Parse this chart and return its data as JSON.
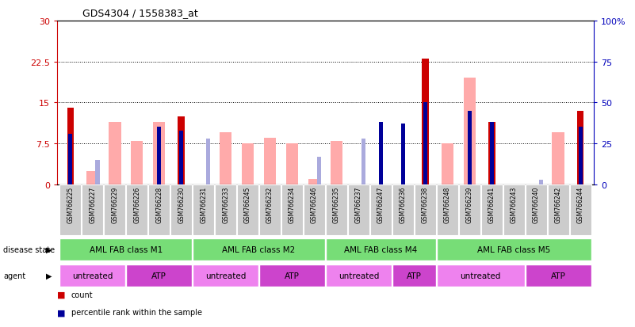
{
  "title": "GDS4304 / 1558383_at",
  "samples": [
    "GSM766225",
    "GSM766227",
    "GSM766229",
    "GSM766226",
    "GSM766228",
    "GSM766230",
    "GSM766231",
    "GSM766233",
    "GSM766245",
    "GSM766232",
    "GSM766234",
    "GSM766246",
    "GSM766235",
    "GSM766237",
    "GSM766247",
    "GSM766236",
    "GSM766238",
    "GSM766248",
    "GSM766239",
    "GSM766241",
    "GSM766243",
    "GSM766240",
    "GSM766242",
    "GSM766244"
  ],
  "count_values": [
    14.0,
    0,
    0,
    0,
    0,
    12.5,
    0,
    0,
    0,
    0,
    0,
    0,
    0,
    0,
    0,
    0,
    23.0,
    0,
    0,
    11.5,
    0,
    0,
    0,
    13.5
  ],
  "percentile_values": [
    31,
    0,
    0,
    0,
    35,
    33,
    0,
    0,
    0,
    0,
    0,
    0,
    0,
    0,
    38,
    37,
    50,
    0,
    45,
    38,
    0,
    0,
    0,
    35
  ],
  "absent_value_values": [
    0,
    2.5,
    11.5,
    8.0,
    11.5,
    0,
    0,
    9.5,
    7.5,
    8.5,
    7.5,
    1.0,
    8.0,
    0,
    0,
    0,
    0,
    7.5,
    19.5,
    0,
    0,
    0,
    9.5,
    0
  ],
  "absent_rank_values": [
    0,
    15,
    0,
    0,
    0,
    0,
    28,
    0,
    0,
    0,
    0,
    17,
    0,
    28,
    0,
    0,
    0,
    0,
    0,
    0,
    0,
    3,
    0,
    0
  ],
  "disease_state_groups": [
    {
      "label": "AML FAB class M1",
      "start": 0,
      "end": 5
    },
    {
      "label": "AML FAB class M2",
      "start": 6,
      "end": 11
    },
    {
      "label": "AML FAB class M4",
      "start": 12,
      "end": 16
    },
    {
      "label": "AML FAB class M5",
      "start": 17,
      "end": 23
    }
  ],
  "agent_groups": [
    {
      "label": "untreated",
      "start": 0,
      "end": 2,
      "color": "#ee82ee"
    },
    {
      "label": "ATP",
      "start": 3,
      "end": 5,
      "color": "#cc44cc"
    },
    {
      "label": "untreated",
      "start": 6,
      "end": 8,
      "color": "#ee82ee"
    },
    {
      "label": "ATP",
      "start": 9,
      "end": 11,
      "color": "#cc44cc"
    },
    {
      "label": "untreated",
      "start": 12,
      "end": 14,
      "color": "#ee82ee"
    },
    {
      "label": "ATP",
      "start": 15,
      "end": 16,
      "color": "#cc44cc"
    },
    {
      "label": "untreated",
      "start": 17,
      "end": 20,
      "color": "#ee82ee"
    },
    {
      "label": "ATP",
      "start": 21,
      "end": 23,
      "color": "#cc44cc"
    }
  ],
  "ylim_left": [
    0,
    30
  ],
  "ylim_right": [
    0,
    100
  ],
  "yticks_left": [
    0,
    7.5,
    15,
    22.5,
    30
  ],
  "yticks_right": [
    0,
    25,
    50,
    75,
    100
  ],
  "grid_lines": [
    7.5,
    15,
    22.5
  ],
  "count_color": "#cc0000",
  "percentile_color": "#000099",
  "absent_value_color": "#ffaaaa",
  "absent_rank_color": "#aaaadd",
  "disease_state_color": "#77dd77",
  "sample_bg_color": "#cccccc",
  "label_color_left": "#cc0000",
  "label_color_right": "#0000bb"
}
